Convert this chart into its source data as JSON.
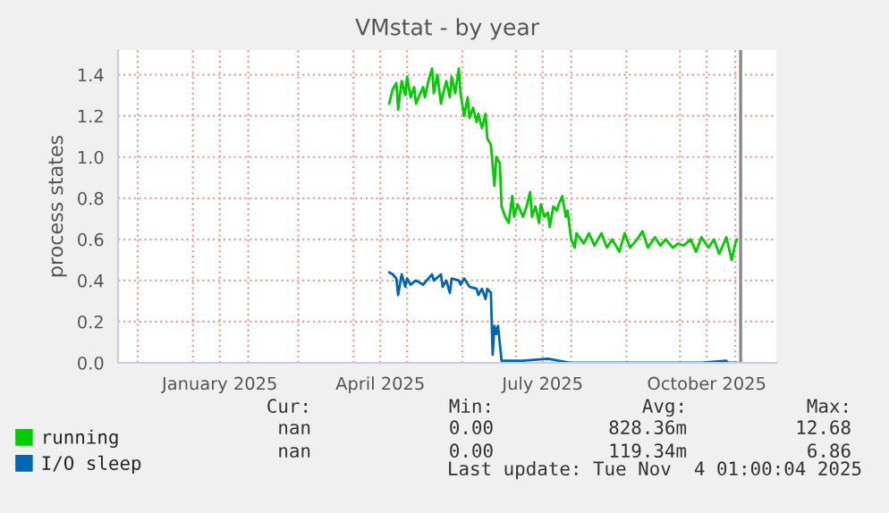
{
  "chart_data": {
    "type": "line",
    "title": "VMstat - by year",
    "ylabel": "process states",
    "series": [
      {
        "name": "running",
        "color": "#00cc00",
        "x": [
          "2025-04-21",
          "2025-04-23",
          "2025-04-25",
          "2025-04-26",
          "2025-04-28",
          "2025-04-30",
          "2025-05-01",
          "2025-05-03",
          "2025-05-05",
          "2025-05-06",
          "2025-05-08",
          "2025-05-10",
          "2025-05-11",
          "2025-05-13",
          "2025-05-15",
          "2025-05-16",
          "2025-05-18",
          "2025-05-20",
          "2025-05-21",
          "2025-05-23",
          "2025-05-25",
          "2025-05-26",
          "2025-05-28",
          "2025-05-30",
          "2025-05-31",
          "2025-06-02",
          "2025-06-04",
          "2025-06-05",
          "2025-06-07",
          "2025-06-09",
          "2025-06-10",
          "2025-06-12",
          "2025-06-14",
          "2025-06-15",
          "2025-06-17",
          "2025-06-19",
          "2025-06-20",
          "2025-06-22",
          "2025-06-23",
          "2025-06-25",
          "2025-06-27",
          "2025-06-29",
          "2025-06-30",
          "2025-07-02",
          "2025-07-04",
          "2025-07-05",
          "2025-07-07",
          "2025-07-09",
          "2025-07-10",
          "2025-07-12",
          "2025-07-14",
          "2025-07-15",
          "2025-07-17",
          "2025-07-19",
          "2025-07-20",
          "2025-07-22",
          "2025-07-24",
          "2025-07-25",
          "2025-07-27",
          "2025-07-29",
          "2025-07-30",
          "2025-08-01",
          "2025-08-03",
          "2025-08-04",
          "2025-08-08",
          "2025-08-11",
          "2025-08-14",
          "2025-08-18",
          "2025-08-21",
          "2025-08-24",
          "2025-08-28",
          "2025-08-31",
          "2025-09-03",
          "2025-09-07",
          "2025-09-10",
          "2025-09-13",
          "2025-09-17",
          "2025-09-20",
          "2025-09-23",
          "2025-09-27",
          "2025-09-30",
          "2025-10-03",
          "2025-10-07",
          "2025-10-10",
          "2025-10-13",
          "2025-10-17",
          "2025-10-20",
          "2025-10-23",
          "2025-10-27",
          "2025-10-30",
          "2025-11-01",
          "2025-11-02"
        ],
        "values": [
          1.26,
          1.33,
          1.36,
          1.23,
          1.37,
          1.3,
          1.39,
          1.29,
          1.34,
          1.26,
          1.3,
          1.34,
          1.29,
          1.37,
          1.43,
          1.31,
          1.4,
          1.26,
          1.3,
          1.37,
          1.29,
          1.39,
          1.31,
          1.43,
          1.31,
          1.2,
          1.29,
          1.19,
          1.24,
          1.17,
          1.21,
          1.14,
          1.21,
          1.09,
          1.06,
          0.86,
          1.0,
          0.97,
          0.76,
          0.71,
          0.68,
          0.81,
          0.71,
          0.77,
          0.73,
          0.71,
          0.76,
          0.83,
          0.71,
          0.76,
          0.68,
          0.77,
          0.71,
          0.73,
          0.66,
          0.76,
          0.74,
          0.77,
          0.81,
          0.71,
          0.74,
          0.6,
          0.56,
          0.63,
          0.58,
          0.63,
          0.57,
          0.63,
          0.56,
          0.6,
          0.54,
          0.63,
          0.56,
          0.6,
          0.64,
          0.56,
          0.61,
          0.57,
          0.6,
          0.56,
          0.58,
          0.57,
          0.6,
          0.54,
          0.61,
          0.56,
          0.6,
          0.53,
          0.61,
          0.5,
          0.58,
          0.6
        ]
      },
      {
        "name": "I/O sleep",
        "color": "#0066b3",
        "x": [
          "2025-04-21",
          "2025-04-23",
          "2025-04-25",
          "2025-04-26",
          "2025-04-28",
          "2025-04-30",
          "2025-05-01",
          "2025-05-03",
          "2025-05-06",
          "2025-05-10",
          "2025-05-13",
          "2025-05-15",
          "2025-05-16",
          "2025-05-20",
          "2025-05-21",
          "2025-05-23",
          "2025-05-25",
          "2025-05-26",
          "2025-05-30",
          "2025-05-31",
          "2025-06-02",
          "2025-06-05",
          "2025-06-09",
          "2025-06-10",
          "2025-06-12",
          "2025-06-14",
          "2025-06-15",
          "2025-06-17",
          "2025-06-18",
          "2025-06-19",
          "2025-06-20",
          "2025-06-21",
          "2025-06-23",
          "2025-06-25",
          "2025-07-05",
          "2025-07-19",
          "2025-07-25",
          "2025-08-01",
          "2025-09-10",
          "2025-10-13",
          "2025-10-27",
          "2025-10-28",
          "2025-11-02"
        ],
        "values": [
          0.44,
          0.43,
          0.41,
          0.33,
          0.43,
          0.37,
          0.41,
          0.38,
          0.4,
          0.38,
          0.41,
          0.43,
          0.4,
          0.43,
          0.37,
          0.4,
          0.34,
          0.41,
          0.4,
          0.38,
          0.41,
          0.37,
          0.36,
          0.33,
          0.36,
          0.31,
          0.36,
          0.34,
          0.04,
          0.18,
          0.14,
          0.18,
          0.01,
          0.01,
          0.01,
          0.02,
          0.01,
          0,
          0,
          0,
          0.01,
          0,
          0
        ]
      }
    ],
    "xlim": [
      "2024-11-20",
      "2025-11-24"
    ],
    "xticks": [
      {
        "value": "2024-12-01",
        "label": null
      },
      {
        "value": "2025-01-01",
        "label": null
      },
      {
        "value": "2025-01-16",
        "label": "January 2025"
      },
      {
        "value": "2025-02-01",
        "label": null
      },
      {
        "value": "2025-03-01",
        "label": null
      },
      {
        "value": "2025-04-01",
        "label": null
      },
      {
        "value": "2025-04-16",
        "label": "April 2025"
      },
      {
        "value": "2025-05-01",
        "label": null
      },
      {
        "value": "2025-06-01",
        "label": null
      },
      {
        "value": "2025-07-01",
        "label": null
      },
      {
        "value": "2025-07-16",
        "label": "July 2025"
      },
      {
        "value": "2025-08-01",
        "label": null
      },
      {
        "value": "2025-09-01",
        "label": null
      },
      {
        "value": "2025-10-01",
        "label": null
      },
      {
        "value": "2025-10-16",
        "label": "October 2025"
      },
      {
        "value": "2025-11-01",
        "label": null
      }
    ],
    "ylim": [
      0,
      1.52
    ],
    "yticks": [
      {
        "value": 0,
        "label": "0.0"
      },
      {
        "value": 0.2,
        "label": "0.2"
      },
      {
        "value": 0.4,
        "label": "0.4"
      },
      {
        "value": 0.6,
        "label": "0.6"
      },
      {
        "value": 0.8,
        "label": "0.8"
      },
      {
        "value": 1.0,
        "label": "1.0"
      },
      {
        "value": 1.2,
        "label": "1.2"
      },
      {
        "value": 1.4,
        "label": "1.4"
      }
    ],
    "ref_lines": [
      {
        "axis": "x",
        "value": "2025-11-04",
        "color": "#888888"
      }
    ],
    "grid": true,
    "legend": "bottom",
    "marker": "none",
    "line_style": "solid",
    "annotations": [
      "Cur:",
      "Min:",
      "Avg:",
      "Max:",
      "nan",
      "0.00",
      "828.36m",
      "12.68",
      "nan",
      "0.00",
      "119.34m",
      "6.86",
      "Last update: Tue Nov  4 01:00:04 2025"
    ]
  }
}
